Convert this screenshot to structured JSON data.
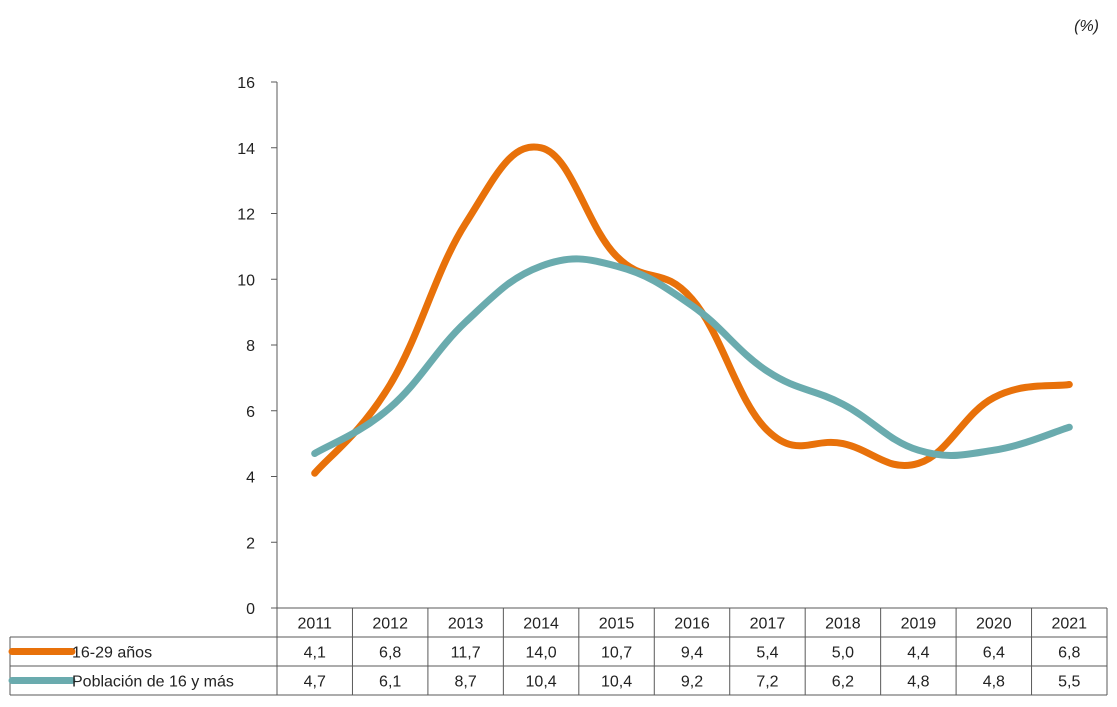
{
  "unit_note": "(%)",
  "chart_data": {
    "type": "line",
    "categories": [
      "2011",
      "2012",
      "2013",
      "2014",
      "2015",
      "2016",
      "2017",
      "2018",
      "2019",
      "2020",
      "2021"
    ],
    "series": [
      {
        "name": "16-29 años",
        "color": "#E8710A",
        "values": [
          4.1,
          6.8,
          11.7,
          14.0,
          10.7,
          9.4,
          5.4,
          5.0,
          4.4,
          6.4,
          6.8
        ],
        "labels": [
          "4,1",
          "6,8",
          "11,7",
          "14,0",
          "10,7",
          "9,4",
          "5,4",
          "5,0",
          "4,4",
          "6,4",
          "6,8"
        ]
      },
      {
        "name": "Población de 16 y más",
        "color": "#6AABAE",
        "values": [
          4.7,
          6.1,
          8.7,
          10.4,
          10.4,
          9.2,
          7.2,
          6.2,
          4.8,
          4.8,
          5.5
        ],
        "labels": [
          "4,7",
          "6,1",
          "8,7",
          "10,4",
          "10,4",
          "9,2",
          "7,2",
          "6,2",
          "4,8",
          "4,8",
          "5,5"
        ]
      }
    ],
    "ylim": [
      0,
      16
    ],
    "yticks": [
      0,
      2,
      4,
      6,
      8,
      10,
      12,
      14,
      16
    ],
    "data_table": true,
    "smooth": true
  }
}
